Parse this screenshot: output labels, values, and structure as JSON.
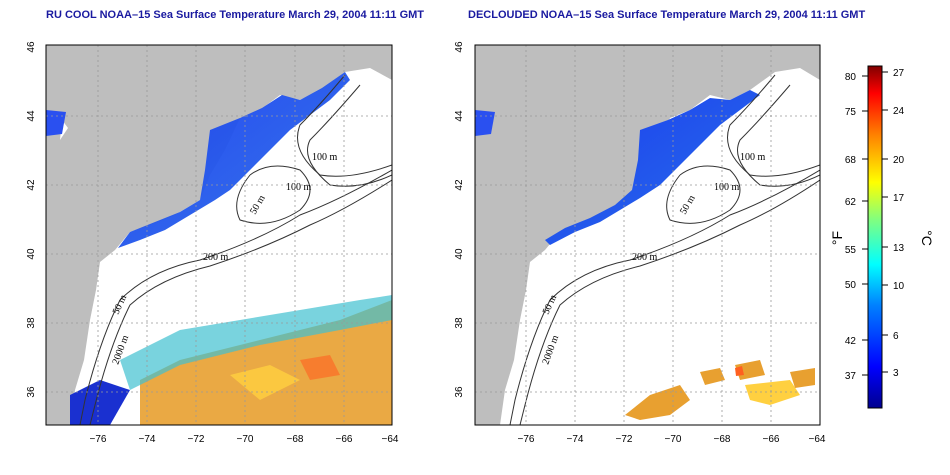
{
  "left_panel": {
    "title": "RU COOL NOAA–15 Sea Surface Temperature March 29, 2004 11:11 GMT"
  },
  "right_panel": {
    "title": "DECLOUDED NOAA–15 Sea Surface Temperature March 29, 2004 11:11 GMT"
  },
  "axes": {
    "longitude_ticks": [
      "−76",
      "−74",
      "−72",
      "−70",
      "−68",
      "−66",
      "−64"
    ],
    "latitude_ticks": [
      "46",
      "44",
      "42",
      "40",
      "38",
      "36"
    ]
  },
  "contour_labels": {
    "left": [
      "100 m",
      "100 m",
      "50 m",
      "200 m",
      "50 m",
      "2000 m"
    ],
    "right": [
      "100 m",
      "100 m",
      "50 m",
      "200 m",
      "50 m",
      "2000 m"
    ]
  },
  "colorbar": {
    "fahrenheit_unit": "°F",
    "celsius_unit": "°C",
    "fahrenheit_ticks": [
      "80",
      "75",
      "68",
      "62",
      "55",
      "50",
      "42",
      "37"
    ],
    "celsius_ticks": [
      "27",
      "24",
      "20",
      "17",
      "13",
      "10",
      "6",
      "3"
    ],
    "colors": [
      "#00008f",
      "#0000ff",
      "#0080ff",
      "#00ffff",
      "#80ff80",
      "#ffff00",
      "#ff8000",
      "#ff0000",
      "#800000"
    ]
  },
  "colors": {
    "land": "#bebebe",
    "title": "#1a1aa0",
    "sst_cold": "#2050e0",
    "sst_warm": "#f09020"
  }
}
